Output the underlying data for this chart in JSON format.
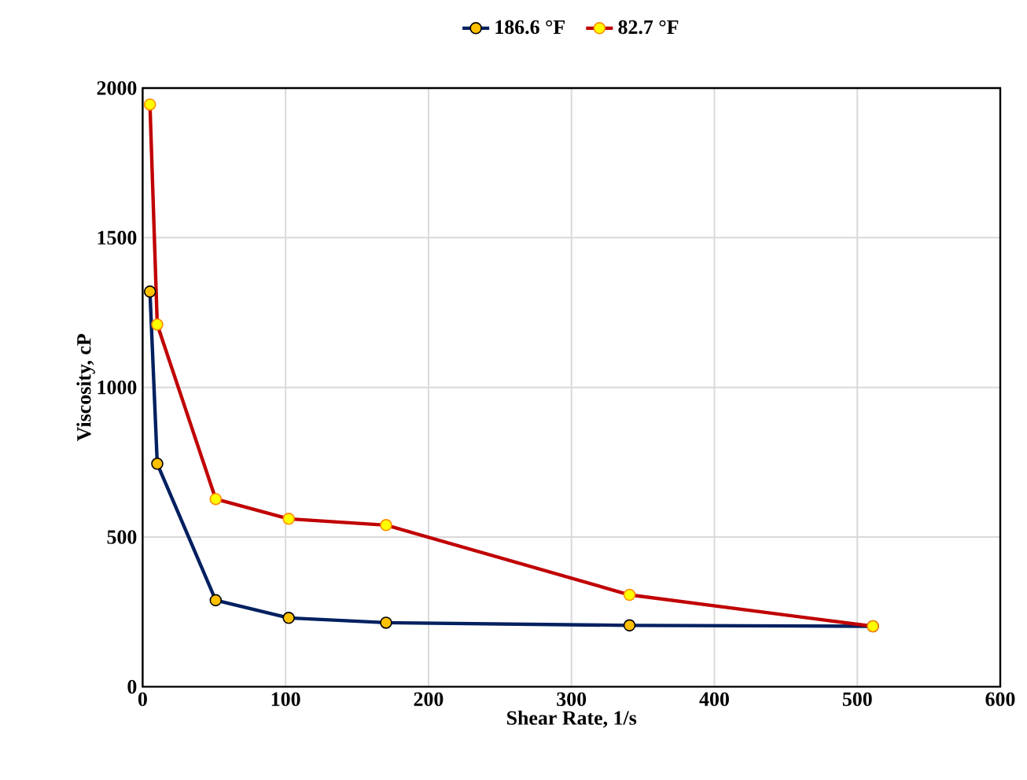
{
  "chart_data": {
    "type": "line",
    "xlabel": "Shear Rate, 1/s",
    "ylabel": "Viscosity, cP",
    "xlim": [
      0,
      600
    ],
    "xticks": [
      0,
      100,
      200,
      300,
      400,
      500,
      600
    ],
    "ylim": [
      0,
      2000
    ],
    "yticks": [
      0,
      500,
      1000,
      1500,
      2000
    ],
    "grid": true,
    "legend": "top",
    "marker": "circle",
    "line_style": "solid",
    "x": [
      5.11,
      10.22,
      51.1,
      102.2,
      170.3,
      340.6,
      510.9
    ],
    "series": [
      {
        "name": "186.6 °F",
        "color": "#002060",
        "values": [
          1320,
          745,
          289,
          230,
          214,
          205,
          202
        ]
      },
      {
        "name": "82.7 °F",
        "color": "#c00000",
        "values": [
          1945,
          1210,
          627,
          561,
          540,
          307,
          202
        ]
      }
    ]
  }
}
